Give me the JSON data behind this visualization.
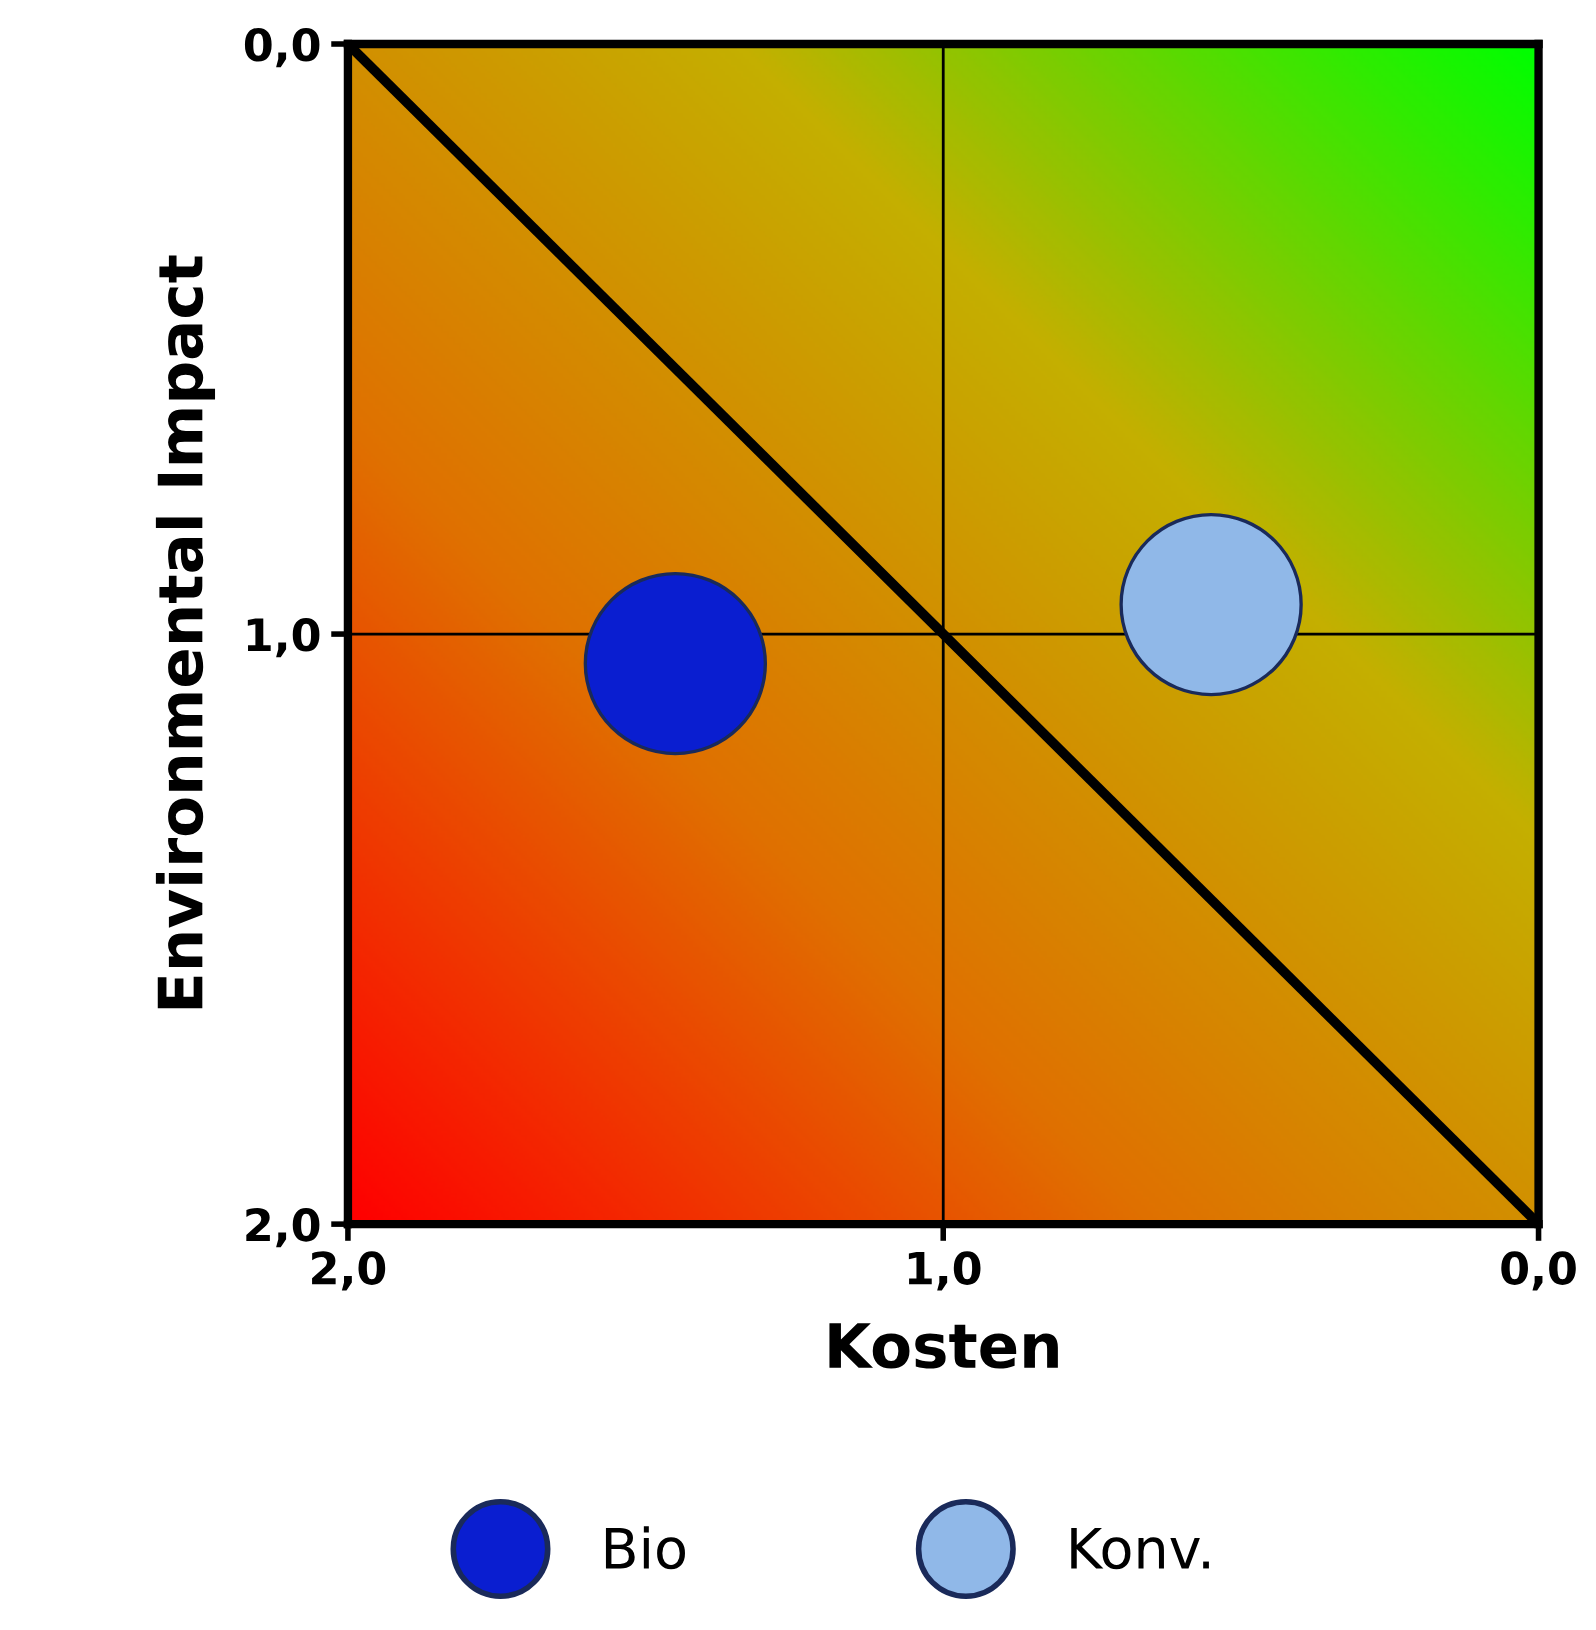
{
  "chart_data": {
    "type": "scatter",
    "xlabel": "Kosten",
    "ylabel": "Environmental Impact",
    "xlim": [
      2.0,
      0.0
    ],
    "ylim": [
      2.0,
      0.0
    ],
    "xticks": [
      {
        "value": 2.0,
        "label": "2,0"
      },
      {
        "value": 1.0,
        "label": "1,0"
      },
      {
        "value": 0.0,
        "label": "0,0"
      }
    ],
    "yticks": [
      {
        "value": 2.0,
        "label": "2,0"
      },
      {
        "value": 1.0,
        "label": "1,0"
      },
      {
        "value": 0.0,
        "label": "0,0"
      }
    ],
    "grid": true,
    "legend": "bottom",
    "series": [
      {
        "type": "line",
        "color": "#000000",
        "x": [
          2.0,
          0.0
        ],
        "values": [
          0.0,
          2.0
        ]
      },
      {
        "name": "Bio",
        "marker": "circle",
        "color": "#0a1ed0",
        "x": [
          1.45
        ],
        "values": [
          1.05
        ]
      },
      {
        "name": "Konv.",
        "marker": "circle",
        "color": "#90b8e8",
        "x": [
          0.55
        ],
        "values": [
          0.95
        ]
      }
    ]
  }
}
